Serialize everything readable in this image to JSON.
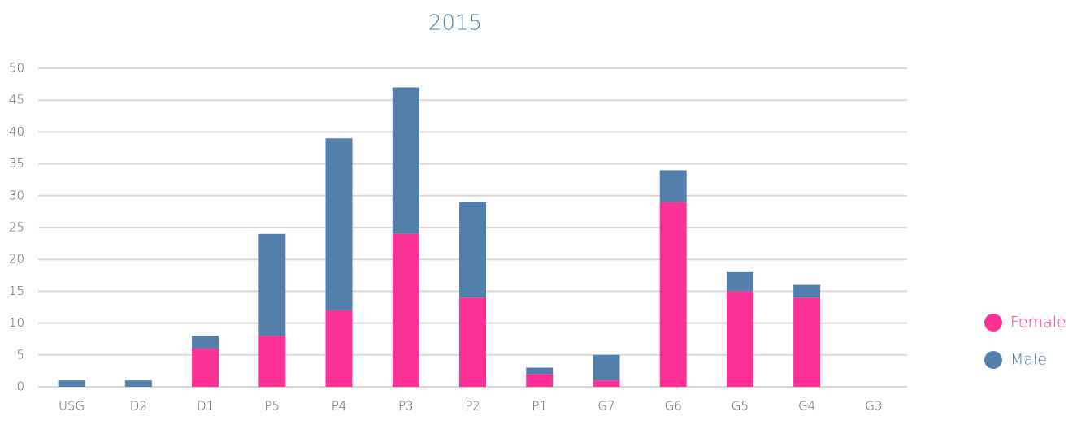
{
  "chart_data": {
    "type": "stacked_bar",
    "title": "2015",
    "categories": [
      "USG",
      "D2",
      "D1",
      "P5",
      "P4",
      "P3",
      "P2",
      "P1",
      "G7",
      "G6",
      "G5",
      "G4",
      "G3"
    ],
    "series": [
      {
        "name": "Female",
        "color": "#fc3195",
        "values": [
          0,
          0,
          6,
          8,
          12,
          24,
          14,
          2,
          1,
          29,
          15,
          14,
          0
        ]
      },
      {
        "name": "Male",
        "color": "#527fab",
        "values": [
          1,
          1,
          2,
          16,
          27,
          23,
          15,
          1,
          4,
          5,
          3,
          2,
          0
        ]
      }
    ],
    "ylim": [
      0,
      50
    ],
    "yticks": [
      0,
      5,
      10,
      15,
      20,
      25,
      30,
      35,
      40,
      45,
      50
    ],
    "grid": true,
    "legend": "right"
  }
}
